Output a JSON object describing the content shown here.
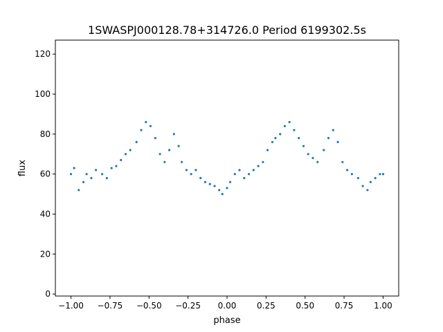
{
  "chart_data": {
    "type": "scatter",
    "title": "1SWASPJ000128.78+314726.0 Period 6199302.5s",
    "xlabel": "phase",
    "ylabel": "flux",
    "xlim": [
      -1.1,
      1.1
    ],
    "ylim": [
      -1,
      127
    ],
    "x_ticks": [
      -1.0,
      -0.75,
      -0.5,
      -0.25,
      0.0,
      0.25,
      0.5,
      0.75,
      1.0
    ],
    "x_tick_labels": [
      "−1.00",
      "−0.75",
      "−0.50",
      "−0.25",
      "0.00",
      "0.25",
      "0.50",
      "0.75",
      "1.00"
    ],
    "y_ticks": [
      0,
      20,
      40,
      60,
      80,
      100,
      120
    ],
    "y_tick_labels": [
      "0",
      "20",
      "40",
      "60",
      "80",
      "100",
      "120"
    ],
    "grid": false,
    "legend": "none",
    "marker_color": "#1f77b4",
    "series": [
      {
        "x": [
          -1.0,
          -0.98,
          -0.95,
          -0.92,
          -0.9,
          -0.87,
          -0.84,
          -0.8,
          -0.77,
          -0.74,
          -0.71,
          -0.68,
          -0.65,
          -0.62,
          -0.58,
          -0.55,
          -0.52,
          -0.49,
          -0.46,
          -0.43,
          -0.4,
          -0.37,
          -0.34,
          -0.31,
          -0.29,
          -0.26,
          -0.23,
          -0.2,
          -0.17,
          -0.14,
          -0.11,
          -0.08,
          -0.05,
          -0.03,
          0.0,
          0.02,
          0.05,
          0.08,
          0.11,
          0.14,
          0.17,
          0.2,
          0.23,
          0.26,
          0.29,
          0.31,
          0.34,
          0.37,
          0.4,
          0.43,
          0.46,
          0.49,
          0.52,
          0.55,
          0.58,
          0.62,
          0.65,
          0.68,
          0.71,
          0.74,
          0.77,
          0.8,
          0.84,
          0.87,
          0.9,
          0.92,
          0.95,
          0.98,
          1.0
        ],
        "y": [
          60,
          63,
          52,
          56,
          60,
          58,
          62,
          60,
          58,
          63,
          64,
          67,
          70,
          72,
          76,
          82,
          86,
          84,
          78,
          70,
          66,
          72,
          80,
          74,
          66,
          62,
          60,
          62,
          58,
          56,
          55,
          54,
          52,
          50,
          53,
          56,
          60,
          62,
          58,
          60,
          62,
          64,
          66,
          72,
          76,
          78,
          80,
          84,
          86,
          82,
          78,
          74,
          70,
          68,
          66,
          72,
          78,
          82,
          76,
          66,
          62,
          60,
          58,
          54,
          52,
          56,
          58,
          60,
          60
        ]
      }
    ]
  }
}
